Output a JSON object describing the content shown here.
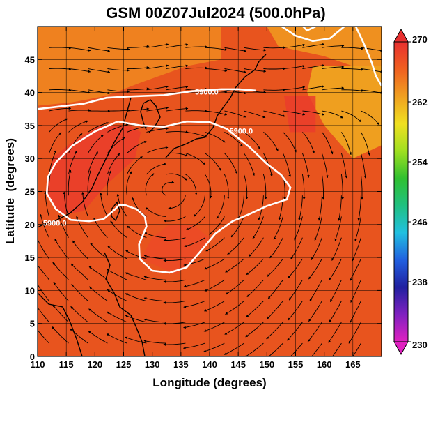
{
  "chart_data": {
    "type": "heatmap",
    "title": "GSM 00Z07Jul2024 (500.0hPa)",
    "xlabel": "Longitude (degrees)",
    "ylabel": "Latitude  (degrees)",
    "xlim": [
      110,
      170
    ],
    "ylim": [
      0,
      50
    ],
    "xticks": [
      110,
      115,
      120,
      125,
      130,
      135,
      140,
      145,
      150,
      155,
      160,
      165
    ],
    "yticks": [
      0,
      5,
      10,
      15,
      20,
      25,
      30,
      35,
      40,
      45
    ],
    "grid": true,
    "colorbar": {
      "min": 230,
      "max": 270,
      "ticks": [
        230,
        238,
        246,
        254,
        262,
        270
      ],
      "colors": [
        "#e020c0",
        "#8020c0",
        "#2020a0",
        "#2060e0",
        "#20c0e0",
        "#20c080",
        "#30c030",
        "#a0e020",
        "#f0e020",
        "#f0a020",
        "#f06020",
        "#e83030"
      ]
    },
    "contours": [
      {
        "label": "5900.0",
        "polygon": [
          [
            113.2,
            29.4
          ],
          [
            116.0,
            31.9
          ],
          [
            120.0,
            34.1
          ],
          [
            124.0,
            35.6
          ],
          [
            128.0,
            35.0
          ],
          [
            132.0,
            34.8
          ],
          [
            136.0,
            35.6
          ],
          [
            140.0,
            35.5
          ],
          [
            143.0,
            34.5
          ],
          [
            147.0,
            31.7
          ],
          [
            150.0,
            29.2
          ],
          [
            152.5,
            27.5
          ],
          [
            154.1,
            25.6
          ],
          [
            153.5,
            23.8
          ],
          [
            150.0,
            22.8
          ],
          [
            147.0,
            21.6
          ],
          [
            144.0,
            20.5
          ],
          [
            141.0,
            18.6
          ],
          [
            138.5,
            16.0
          ],
          [
            136.0,
            13.5
          ],
          [
            133.0,
            12.7
          ],
          [
            130.0,
            13.0
          ],
          [
            127.8,
            14.8
          ],
          [
            127.7,
            17.0
          ],
          [
            129.0,
            19.7
          ],
          [
            128.7,
            21.2
          ],
          [
            127.3,
            22.3
          ],
          [
            125.4,
            22.9
          ],
          [
            124.3,
            23.0
          ],
          [
            123.5,
            22.3
          ],
          [
            121.5,
            20.8
          ],
          [
            119.0,
            20.5
          ],
          [
            115.8,
            20.7
          ],
          [
            113.2,
            22.3
          ],
          [
            111.6,
            24.7
          ],
          [
            111.8,
            27.2
          ]
        ]
      },
      {
        "label": "5900.0",
        "polyline": [
          [
            110,
            37.5
          ],
          [
            113,
            37.8
          ],
          [
            118,
            38.3
          ],
          [
            122,
            39.2
          ],
          [
            126,
            39.4
          ],
          [
            132,
            39.6
          ],
          [
            137,
            40.2
          ],
          [
            142,
            40.5
          ],
          [
            145,
            40.5
          ],
          [
            148,
            40.3
          ]
        ]
      },
      {
        "label": "",
        "polyline": [
          [
            165.5,
            50
          ],
          [
            166.8,
            47.6
          ],
          [
            168.3,
            44.5
          ],
          [
            169.0,
            42.5
          ],
          [
            170,
            41.0
          ]
        ]
      },
      {
        "label": "",
        "polyline": [
          [
            152.6,
            50
          ],
          [
            155.0,
            48.6
          ],
          [
            158.0,
            47.8
          ],
          [
            161.0,
            48.2
          ],
          [
            163.5,
            50
          ]
        ]
      },
      {
        "label": "",
        "polyline": [
          [
            156.3,
            50
          ],
          [
            157.0,
            49.4
          ],
          [
            158.5,
            50
          ]
        ]
      }
    ],
    "contour_label_positions": [
      [
        139.5,
        39.7
      ],
      [
        113.0,
        19.8
      ],
      [
        145.5,
        33.8
      ]
    ],
    "color_regions": [
      {
        "value": 264,
        "polygon": [
          [
            110,
            50
          ],
          [
            142,
            50
          ],
          [
            142,
            45
          ],
          [
            136,
            44
          ],
          [
            128,
            41.5
          ],
          [
            122,
            39.5
          ],
          [
            116,
            38.5
          ],
          [
            110,
            38
          ]
        ]
      },
      {
        "value": 263,
        "polygon": [
          [
            150,
            50
          ],
          [
            170,
            50
          ],
          [
            170,
            44
          ],
          [
            165,
            44
          ],
          [
            160,
            45.5
          ],
          [
            152,
            47
          ]
        ]
      },
      {
        "value": 262,
        "polygon": [
          [
            158,
            44
          ],
          [
            170,
            44
          ],
          [
            170,
            32
          ],
          [
            165,
            30
          ],
          [
            160,
            35
          ],
          [
            157,
            40
          ]
        ]
      },
      {
        "value": 269,
        "polygon": [
          [
            112.5,
            30
          ],
          [
            116,
            32.5
          ],
          [
            121,
            35
          ],
          [
            126,
            35
          ],
          [
            128,
            34
          ],
          [
            127,
            30
          ],
          [
            122,
            26
          ],
          [
            118,
            22
          ],
          [
            114,
            21.5
          ],
          [
            111.5,
            25
          ]
        ]
      },
      {
        "value": 269,
        "polygon": [
          [
            153,
            39.5
          ],
          [
            158.5,
            39.5
          ],
          [
            158.5,
            34
          ],
          [
            154,
            34
          ]
        ]
      },
      {
        "value": 268,
        "polygon": [
          [
            128,
            14.8
          ],
          [
            134,
            12.5
          ],
          [
            137,
            14
          ],
          [
            140,
            18
          ],
          [
            137,
            20
          ],
          [
            133,
            20
          ],
          [
            130,
            18
          ]
        ]
      }
    ]
  }
}
